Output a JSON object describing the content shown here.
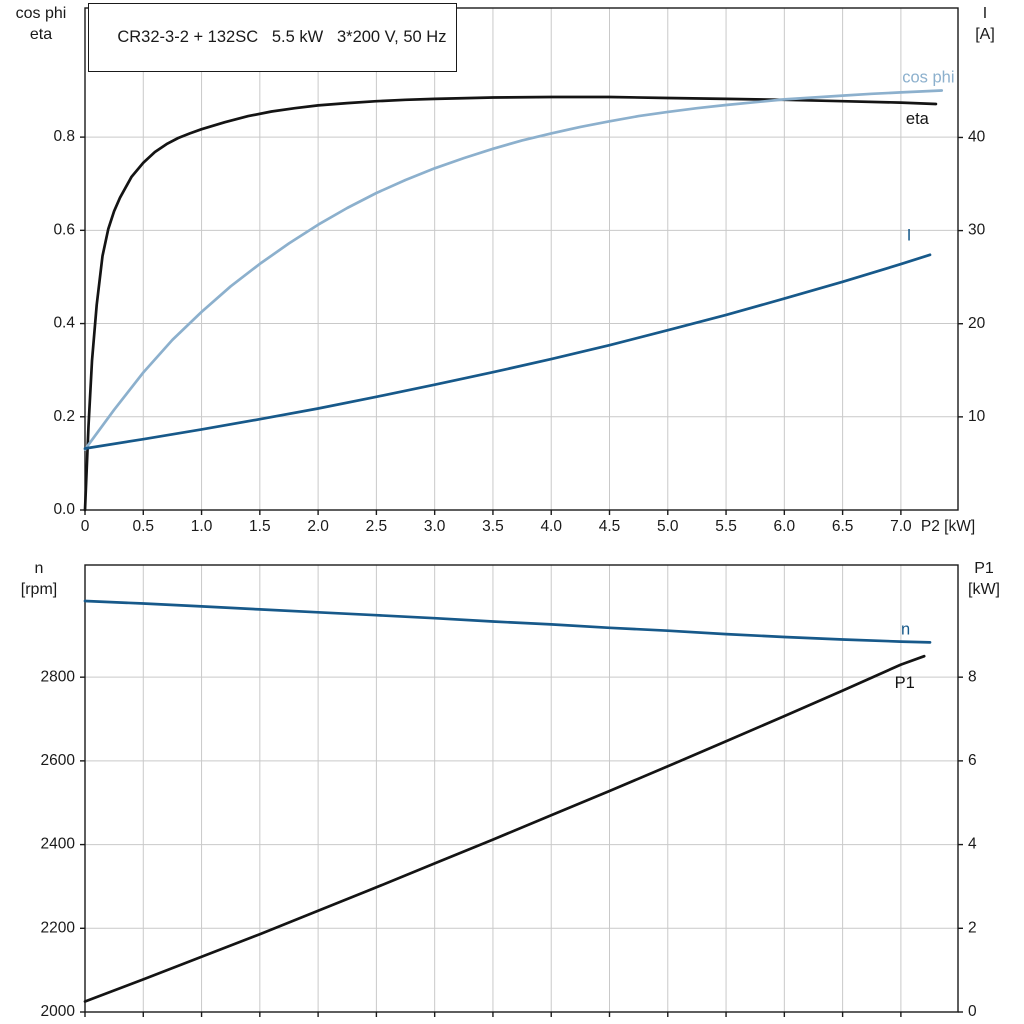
{
  "title_box": {
    "text": "CR32-3-2 + 132SC   5.5 kW   3*200 V, 50 Hz"
  },
  "palette": {
    "frame": "#1a1a1a",
    "grid": "#c9c9c9",
    "text": "#1a1a1a",
    "black_curve": "#141414",
    "light_blue": "#8cb0cd",
    "dark_blue": "#17598a"
  },
  "chart_data": [
    {
      "type": "line",
      "name": "motor-electrical-chart",
      "x": {
        "label": "P2 [kW]",
        "min": 0,
        "max": 7.49,
        "ticks": [
          0,
          0.5,
          1,
          1.5,
          2,
          2.5,
          3,
          3.5,
          4,
          4.5,
          5,
          5.5,
          6,
          6.5,
          7
        ],
        "tick_labels": [
          "0",
          "0.5",
          "1.0",
          "1.5",
          "2.0",
          "2.5",
          "3.0",
          "3.5",
          "4.0",
          "4.5",
          "5.0",
          "5.5",
          "6.0",
          "6.5",
          "7.0"
        ],
        "show_tick_labels": true,
        "grid": true
      },
      "y_left": {
        "label_lines": [
          "cos phi",
          "eta"
        ],
        "min": 0,
        "max": 1.077,
        "ticks": [
          0,
          0.2,
          0.4,
          0.6,
          0.8
        ],
        "tick_labels": [
          "0.0",
          "0.2",
          "0.4",
          "0.6",
          "0.8"
        ],
        "grid": true
      },
      "y_right": {
        "label_lines": [
          "I",
          "[A]"
        ],
        "min": 0,
        "max": 53.9,
        "ticks": [
          10,
          20,
          30,
          40
        ],
        "tick_labels": [
          "10",
          "20",
          "30",
          "40"
        ]
      },
      "series": [
        {
          "name": "eta",
          "label": "eta",
          "axis": "left",
          "color": "#141414",
          "label_anchor": {
            "x": 7.24,
            "y": 0.837,
            "align": "end"
          },
          "points": [
            [
              0,
              0
            ],
            [
              0.03,
              0.18
            ],
            [
              0.06,
              0.32
            ],
            [
              0.1,
              0.44
            ],
            [
              0.15,
              0.545
            ],
            [
              0.2,
              0.603
            ],
            [
              0.25,
              0.641
            ],
            [
              0.3,
              0.67
            ],
            [
              0.4,
              0.715
            ],
            [
              0.5,
              0.745
            ],
            [
              0.6,
              0.768
            ],
            [
              0.7,
              0.785
            ],
            [
              0.8,
              0.798
            ],
            [
              0.9,
              0.808
            ],
            [
              1.0,
              0.817
            ],
            [
              1.2,
              0.832
            ],
            [
              1.4,
              0.845
            ],
            [
              1.6,
              0.855
            ],
            [
              1.8,
              0.862
            ],
            [
              2.0,
              0.868
            ],
            [
              2.25,
              0.873
            ],
            [
              2.5,
              0.877
            ],
            [
              2.75,
              0.88
            ],
            [
              3.0,
              0.882
            ],
            [
              3.5,
              0.885
            ],
            [
              4.0,
              0.886
            ],
            [
              4.5,
              0.886
            ],
            [
              5.0,
              0.884
            ],
            [
              5.5,
              0.882
            ],
            [
              6.0,
              0.88
            ],
            [
              6.5,
              0.877
            ],
            [
              7.0,
              0.874
            ],
            [
              7.3,
              0.871
            ]
          ]
        },
        {
          "name": "cos phi",
          "label": "cos phi",
          "axis": "left",
          "color": "#8cb0cd",
          "label_anchor": {
            "x": 7.46,
            "y": 0.927,
            "align": "end"
          },
          "points": [
            [
              0,
              0.13
            ],
            [
              0.25,
              0.215
            ],
            [
              0.5,
              0.295
            ],
            [
              0.75,
              0.365
            ],
            [
              1.0,
              0.425
            ],
            [
              1.25,
              0.48
            ],
            [
              1.5,
              0.528
            ],
            [
              1.75,
              0.572
            ],
            [
              2.0,
              0.612
            ],
            [
              2.25,
              0.648
            ],
            [
              2.5,
              0.68
            ],
            [
              2.75,
              0.708
            ],
            [
              3.0,
              0.733
            ],
            [
              3.25,
              0.755
            ],
            [
              3.5,
              0.775
            ],
            [
              3.75,
              0.793
            ],
            [
              4.0,
              0.808
            ],
            [
              4.25,
              0.822
            ],
            [
              4.5,
              0.834
            ],
            [
              4.75,
              0.845
            ],
            [
              5.0,
              0.854
            ],
            [
              5.25,
              0.862
            ],
            [
              5.5,
              0.869
            ],
            [
              5.75,
              0.875
            ],
            [
              6.0,
              0.881
            ],
            [
              6.25,
              0.885
            ],
            [
              6.5,
              0.889
            ],
            [
              6.75,
              0.893
            ],
            [
              7.0,
              0.896
            ],
            [
              7.35,
              0.9
            ]
          ]
        },
        {
          "name": "I",
          "label": "I",
          "axis": "right",
          "color": "#17598a",
          "label_anchor": {
            "x": 7.05,
            "y": 29.4,
            "align": "start"
          },
          "points": [
            [
              0,
              6.6
            ],
            [
              0.5,
              7.6
            ],
            [
              1.0,
              8.65
            ],
            [
              1.5,
              9.75
            ],
            [
              2.0,
              10.9
            ],
            [
              2.5,
              12.15
            ],
            [
              3.0,
              13.45
            ],
            [
              3.5,
              14.8
            ],
            [
              4.0,
              16.2
            ],
            [
              4.5,
              17.7
            ],
            [
              5.0,
              19.3
            ],
            [
              5.5,
              20.95
            ],
            [
              6.0,
              22.7
            ],
            [
              6.5,
              24.5
            ],
            [
              7.0,
              26.4
            ],
            [
              7.25,
              27.4
            ]
          ]
        }
      ]
    },
    {
      "type": "line",
      "name": "speed-power-chart",
      "x": {
        "label": "",
        "min": 0,
        "max": 7.49,
        "ticks": [
          0,
          0.5,
          1,
          1.5,
          2,
          2.5,
          3,
          3.5,
          4,
          4.5,
          5,
          5.5,
          6,
          6.5,
          7
        ],
        "tick_labels": [],
        "show_tick_labels": false,
        "grid": true
      },
      "y_left": {
        "label_lines": [
          "n",
          "[rpm]"
        ],
        "min": 2000,
        "max": 3068,
        "ticks": [
          2000,
          2200,
          2400,
          2600,
          2800
        ],
        "tick_labels": [
          "2000",
          "2200",
          "2400",
          "2600",
          "2800"
        ],
        "grid": true
      },
      "y_right": {
        "label_lines": [
          "P1",
          "[kW]"
        ],
        "min": 0,
        "max": 10.68,
        "ticks": [
          0,
          2,
          4,
          6,
          8
        ],
        "tick_labels": [
          "0",
          "2",
          "4",
          "6",
          "8"
        ]
      },
      "series": [
        {
          "name": "n",
          "label": "n",
          "axis": "left",
          "color": "#17598a",
          "label_anchor": {
            "x": 7.08,
            "y": 2912,
            "align": "end"
          },
          "points": [
            [
              0,
              2982
            ],
            [
              0.5,
              2976
            ],
            [
              1.0,
              2969
            ],
            [
              1.5,
              2962
            ],
            [
              2.0,
              2955
            ],
            [
              2.5,
              2948
            ],
            [
              3.0,
              2941
            ],
            [
              3.5,
              2933
            ],
            [
              4.0,
              2926
            ],
            [
              4.5,
              2918
            ],
            [
              5.0,
              2911
            ],
            [
              5.5,
              2903
            ],
            [
              6.0,
              2896
            ],
            [
              6.5,
              2890
            ],
            [
              7.0,
              2885
            ],
            [
              7.25,
              2883
            ]
          ]
        },
        {
          "name": "P1",
          "label": "P1",
          "axis": "right",
          "color": "#141414",
          "label_anchor": {
            "x": 7.12,
            "y": 7.85,
            "align": "end"
          },
          "points": [
            [
              0,
              0.25
            ],
            [
              0.5,
              0.78
            ],
            [
              1.0,
              1.32
            ],
            [
              1.5,
              1.86
            ],
            [
              2.0,
              2.42
            ],
            [
              2.5,
              2.98
            ],
            [
              3.0,
              3.55
            ],
            [
              3.5,
              4.12
            ],
            [
              4.0,
              4.7
            ],
            [
              4.5,
              5.28
            ],
            [
              5.0,
              5.87
            ],
            [
              5.5,
              6.47
            ],
            [
              6.0,
              7.07
            ],
            [
              6.5,
              7.68
            ],
            [
              7.0,
              8.3
            ],
            [
              7.2,
              8.5
            ]
          ]
        }
      ]
    }
  ]
}
